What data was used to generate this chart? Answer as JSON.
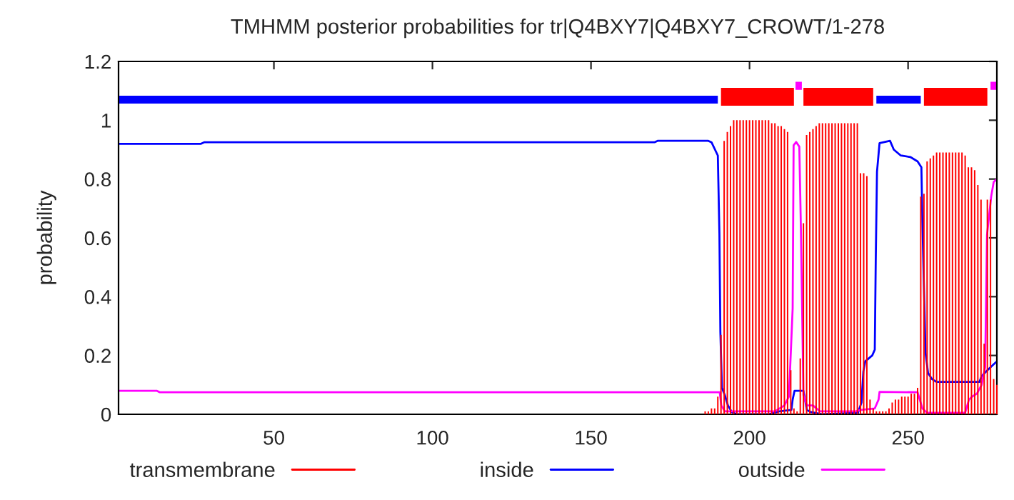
{
  "chart_data": {
    "type": "line",
    "title": "TMHMM posterior probabilities for tr|Q4BXY7|Q4BXY7_CROWT/1-278",
    "ylabel": "probability",
    "xlim": [
      1,
      278
    ],
    "xticks": [
      50,
      100,
      150,
      200,
      250
    ],
    "ylim": [
      0,
      1.2
    ],
    "yticks": [
      0,
      0.2,
      0.4,
      0.6,
      0.8,
      1,
      1.2
    ],
    "grid": false,
    "legend": "bottom",
    "series": [
      {
        "name": "transmembrane",
        "type": "bar",
        "color": "#ff0000",
        "x": [
          186,
          187,
          188,
          189,
          190,
          191,
          192,
          193,
          194,
          195,
          196,
          197,
          198,
          199,
          200,
          201,
          202,
          203,
          204,
          205,
          206,
          207,
          208,
          209,
          210,
          211,
          212,
          213,
          214,
          215,
          216,
          217,
          218,
          219,
          220,
          221,
          222,
          223,
          224,
          225,
          226,
          227,
          228,
          229,
          230,
          231,
          232,
          233,
          234,
          235,
          236,
          237,
          238,
          239,
          240,
          241,
          242,
          243,
          244,
          245,
          246,
          247,
          248,
          249,
          250,
          251,
          252,
          253,
          254,
          255,
          256,
          257,
          258,
          259,
          260,
          261,
          262,
          263,
          264,
          265,
          266,
          267,
          268,
          269,
          270,
          271,
          272,
          273,
          274,
          275,
          276,
          277,
          278
        ],
        "values": [
          0.01,
          0.01,
          0.02,
          0.02,
          0.06,
          0.27,
          0.93,
          0.96,
          0.98,
          1.0,
          1.0,
          1.0,
          1.0,
          1.0,
          1.0,
          1.0,
          1.0,
          1.0,
          1.0,
          1.0,
          1.0,
          0.99,
          0.99,
          0.98,
          0.98,
          0.97,
          0.96,
          0.15,
          0.02,
          0.01,
          0.19,
          0.65,
          0.95,
          0.96,
          0.97,
          0.98,
          0.99,
          0.99,
          0.99,
          0.99,
          0.99,
          0.99,
          0.99,
          0.99,
          0.99,
          0.99,
          0.99,
          0.99,
          0.99,
          0.82,
          0.82,
          0.81,
          0.05,
          0.02,
          0.01,
          0.01,
          0.01,
          0.01,
          0.02,
          0.04,
          0.05,
          0.05,
          0.06,
          0.06,
          0.06,
          0.07,
          0.07,
          0.09,
          0.74,
          0.75,
          0.86,
          0.87,
          0.88,
          0.89,
          0.89,
          0.89,
          0.89,
          0.89,
          0.89,
          0.89,
          0.89,
          0.89,
          0.88,
          0.84,
          0.84,
          0.83,
          0.78,
          0.73,
          0.24,
          0.73,
          0.73,
          0.12,
          0.1
        ]
      },
      {
        "name": "inside",
        "color": "#0000ff",
        "x": [
          1,
          27,
          28,
          170,
          171,
          187,
          188,
          190,
          190.5,
          190.8,
          191.3,
          192.2,
          193.2,
          194.4,
          196,
          206,
          209.4,
          213.2,
          213.6,
          214.2,
          217,
          217.5,
          218.1,
          219.2,
          223,
          234.2,
          235.3,
          235.9,
          236.5,
          238.7,
          239.5,
          239.8,
          240.2,
          241,
          244.3,
          245.5,
          247.7,
          250.7,
          253,
          254.2,
          254.5,
          255.5,
          256.3,
          257.5,
          259,
          272.5,
          273.2,
          275.5,
          277,
          278
        ],
        "values": [
          0.92,
          0.92,
          0.925,
          0.925,
          0.93,
          0.93,
          0.925,
          0.88,
          0.615,
          0.28,
          0.09,
          0.065,
          0.03,
          0.008,
          0,
          0,
          0.01,
          0.015,
          0.05,
          0.08,
          0.08,
          0.05,
          0.015,
          0.008,
          0,
          0.005,
          0.04,
          0.146,
          0.18,
          0.2,
          0.22,
          0.52,
          0.825,
          0.922,
          0.93,
          0.9,
          0.88,
          0.875,
          0.86,
          0.84,
          0.66,
          0.21,
          0.14,
          0.12,
          0.11,
          0.11,
          0.13,
          0.155,
          0.17,
          0.18
        ]
      },
      {
        "name": "outside",
        "color": "#ff00ff",
        "x": [
          1,
          13,
          14,
          190.6,
          191.1,
          192.2,
          208,
          211,
          212.4,
          212.7,
          213.6,
          213.9,
          214.7,
          215.7,
          216.2,
          217,
          218.1,
          220,
          222.2,
          233.5,
          235,
          239.5,
          240.7,
          241,
          253,
          254.5,
          256,
          268,
          269.2,
          270.2,
          271.7,
          273.2,
          274.3,
          274.9,
          276.2,
          277,
          278
        ],
        "values": [
          0.08,
          0.08,
          0.075,
          0.075,
          0.03,
          0.01,
          0.01,
          0.03,
          0.06,
          0.13,
          0.36,
          0.915,
          0.926,
          0.91,
          0.63,
          0.065,
          0.03,
          0.03,
          0.01,
          0.01,
          0.015,
          0.02,
          0.05,
          0.076,
          0.075,
          0.02,
          0.005,
          0.005,
          0.05,
          0.06,
          0.07,
          0.1,
          0.16,
          0.61,
          0.74,
          0.79,
          0.8
        ]
      },
      {
        "color": "#0000ff",
        "x": [
          1,
          190,
          190.5,
          240,
          254
        ],
        "values": [
          1.07,
          1.07,
          null,
          1.07,
          1.07
        ]
      },
      {
        "color": "#ff0000",
        "x": [
          191,
          214,
          214.5,
          217,
          239,
          239.5,
          255,
          275
        ],
        "values": [
          1.08,
          1.08,
          null,
          1.08,
          1.08,
          null,
          1.08,
          1.08
        ]
      },
      {
        "color": "#ff00ff",
        "x": [
          214.5,
          216.5,
          217,
          276,
          278
        ],
        "values": [
          1.117,
          1.117,
          null,
          1.117,
          1.117
        ]
      }
    ]
  }
}
